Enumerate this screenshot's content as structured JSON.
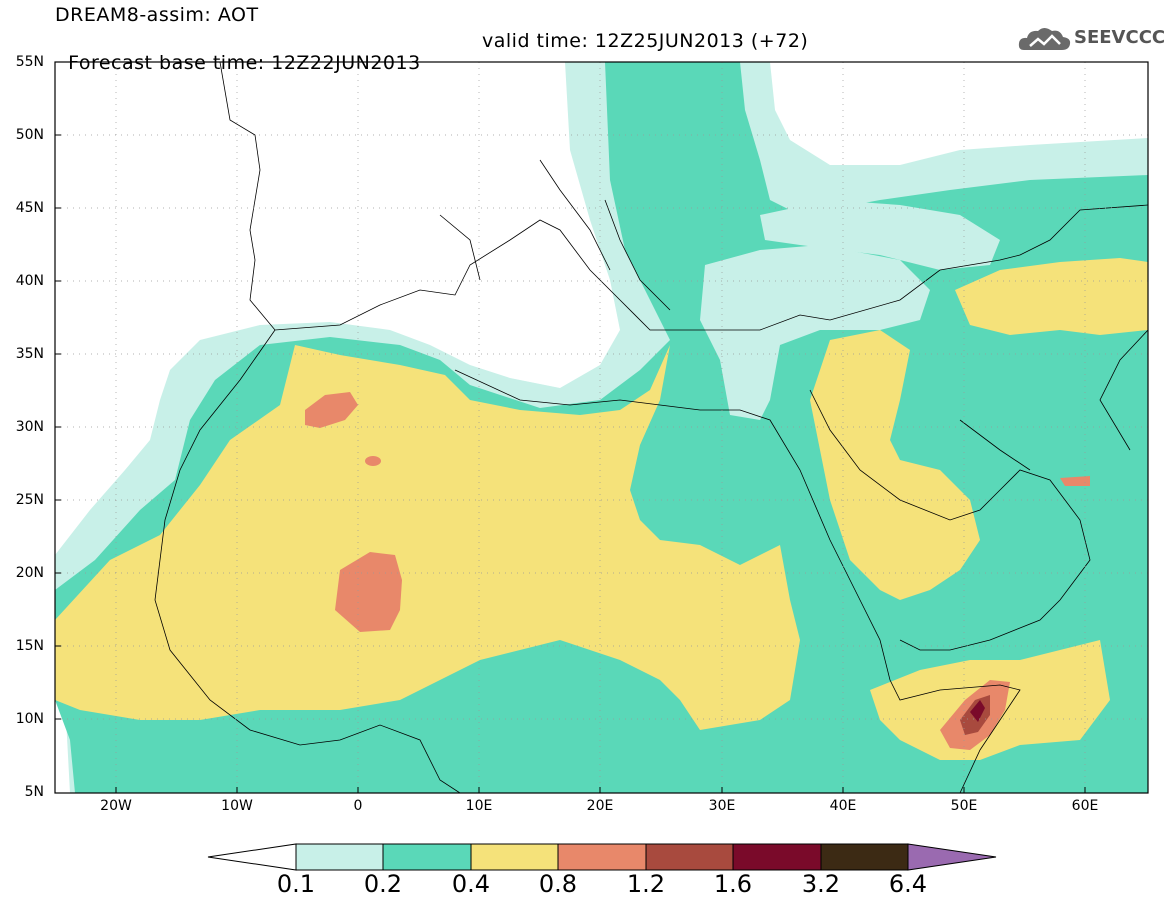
{
  "header": {
    "line1": "DREAM8-assim: AOT",
    "line2": "Forecast base time: 12Z22JUN2013",
    "valid": "valid time: 12Z25JUN2013 (+72)"
  },
  "logo": {
    "text": "SEEVCCC",
    "icon": "cloud-logo-icon"
  },
  "map": {
    "lat_labels": [
      "55N",
      "50N",
      "45N",
      "40N",
      "35N",
      "30N",
      "25N",
      "20N",
      "15N",
      "10N",
      "5N"
    ],
    "lon_labels": [
      "20W",
      "10W",
      "0",
      "10E",
      "20E",
      "30E",
      "40E",
      "50E",
      "60E"
    ],
    "lat_range": [
      5,
      55
    ],
    "lon_range": [
      -25,
      65
    ],
    "field": "AOT (aerosol optical thickness)"
  },
  "colorbar": {
    "labels": [
      "0.1",
      "0.2",
      "0.4",
      "0.8",
      "1.2",
      "1.6",
      "3.2",
      "6.4"
    ],
    "colors": {
      "c1": "#c8f0e8",
      "c2": "#5ad8b8",
      "c3": "#f5e27a",
      "c4": "#e8886a",
      "c5": "#a84a3e",
      "c6": "#7a0a2a",
      "c7": "#3c2a14",
      "c8": "#9a6ab0"
    }
  }
}
